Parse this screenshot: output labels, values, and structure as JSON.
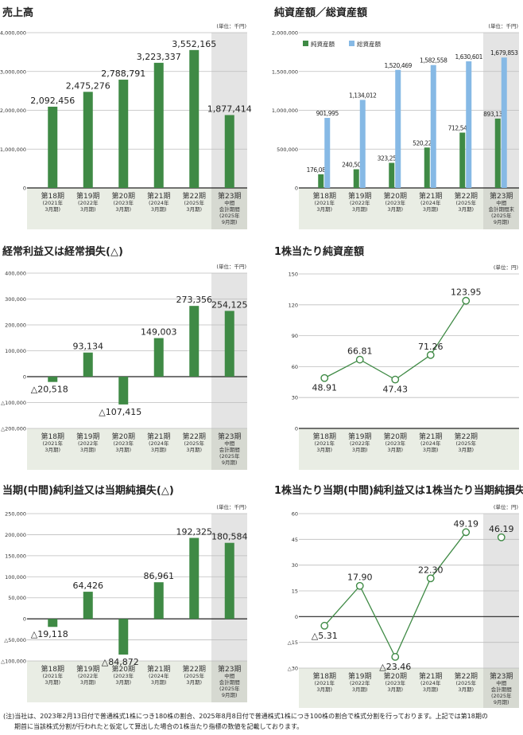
{
  "colors": {
    "green": "#3f8a45",
    "blue": "#86b9e5",
    "grid": "#bdbdbd",
    "band": "#e9ede4",
    "interim_plot": "#e4e4e4",
    "interim_band": "#d6d9d1"
  },
  "footnote": [
    "(注)当社は、2023年2月13日付で普通株式1株につき180株の割合、2025年8月8日付で普通株式1株につき100株の割合で株式分割を行っております。上記では第18期の",
    "期首に当該株式分割が行われたと仮定して算出した場合の1株当たり指標の数値を記載しております。"
  ],
  "chart_data": [
    {
      "type": "bar",
      "title": "売上高",
      "unit": "(単位：千円)",
      "categories": [
        [
          "第18期",
          "(2021年",
          "3月期)"
        ],
        [
          "第19期",
          "(2022年",
          "3月期)"
        ],
        [
          "第20期",
          "(2023年",
          "3月期)"
        ],
        [
          "第21期",
          "(2024年",
          "3月期)"
        ],
        [
          "第22期",
          "(2025年",
          "3月期)"
        ],
        [
          "第23期",
          "中間",
          "会計期間",
          "(2025年",
          "9月期)"
        ]
      ],
      "ylim": [
        0,
        4000000
      ],
      "ticks": [
        {
          "v": 0,
          "label": "0"
        },
        {
          "v": 1000000,
          "label": "1,000,000"
        },
        {
          "v": 2000000,
          "label": "2,000,000"
        },
        {
          "v": 3000000,
          "label": "3,000,000"
        },
        {
          "v": 4000000,
          "label": "4,000,000"
        }
      ],
      "series": [
        {
          "name": "売上高",
          "values": [
            2092456,
            2475276,
            2788791,
            3223337,
            3552165,
            1877414
          ],
          "labels": [
            "2,092,456",
            "2,475,276",
            "2,788,791",
            "3,223,337",
            "3,552,165",
            "1,877,414"
          ]
        }
      ],
      "interim_highlight": true
    },
    {
      "type": "bar",
      "title": "純資産額／総資産額",
      "unit": "(単位：千円)",
      "legend": [
        "純資産額",
        "総資産額"
      ],
      "legend_position": "top-left",
      "categories": [
        [
          "第18期",
          "(2021年",
          "3月期)"
        ],
        [
          "第19期",
          "(2022年",
          "3月期)"
        ],
        [
          "第20期",
          "(2023年",
          "3月期)"
        ],
        [
          "第21期",
          "(2024年",
          "3月期)"
        ],
        [
          "第22期",
          "(2025年",
          "3月期)"
        ],
        [
          "第23期",
          "中間",
          "会計期間末",
          "(2025年",
          "9月期)"
        ]
      ],
      "ylim": [
        0,
        2000000
      ],
      "ticks": [
        {
          "v": 0,
          "label": "0"
        },
        {
          "v": 500000,
          "label": "500,000"
        },
        {
          "v": 1000000,
          "label": "1,000,000"
        },
        {
          "v": 1500000,
          "label": "1,500,000"
        },
        {
          "v": 2000000,
          "label": "2,000,000"
        }
      ],
      "series": [
        {
          "name": "純資産額",
          "values": [
            176082,
            240509,
            323259,
            520220,
            712546,
            893130
          ],
          "labels": [
            "176,082",
            "240,509",
            "323,259",
            "520,220",
            "712,546",
            "893,130"
          ]
        },
        {
          "name": "総資産額",
          "values": [
            901995,
            1134012,
            1520469,
            1582558,
            1630601,
            1679853
          ],
          "labels": [
            "901,995",
            "1,134,012",
            "1,520,469",
            "1,582,558",
            "1,630,601",
            "1,679,853"
          ]
        }
      ],
      "interim_highlight": true
    },
    {
      "type": "bar",
      "title": "経常利益又は経常損失(△)",
      "unit": "(単位：千円)",
      "categories": [
        [
          "第18期",
          "(2021年",
          "3月期)"
        ],
        [
          "第19期",
          "(2022年",
          "3月期)"
        ],
        [
          "第20期",
          "(2023年",
          "3月期)"
        ],
        [
          "第21期",
          "(2024年",
          "3月期)"
        ],
        [
          "第22期",
          "(2025年",
          "3月期)"
        ],
        [
          "第23期",
          "中間",
          "会計期間",
          "(2025年",
          "9月期)"
        ]
      ],
      "ylim": [
        -200000,
        400000
      ],
      "ticks": [
        {
          "v": -200000,
          "label": "△200,000"
        },
        {
          "v": -100000,
          "label": "△100,000"
        },
        {
          "v": 0,
          "label": "0"
        },
        {
          "v": 100000,
          "label": "100,000"
        },
        {
          "v": 200000,
          "label": "200,000"
        },
        {
          "v": 300000,
          "label": "300,000"
        },
        {
          "v": 400000,
          "label": "400,000"
        }
      ],
      "series": [
        {
          "name": "経常利益",
          "values": [
            -20518,
            93134,
            -107415,
            149003,
            273356,
            254125
          ],
          "labels": [
            "△20,518",
            "93,134",
            "△107,415",
            "149,003",
            "273,356",
            "254,125"
          ]
        }
      ],
      "interim_highlight": true
    },
    {
      "type": "line",
      "title": "1株当たり純資産額",
      "unit": "(単位：円)",
      "categories": [
        [
          "第18期",
          "(2021年",
          "3月期)"
        ],
        [
          "第19期",
          "(2022年",
          "3月期)"
        ],
        [
          "第20期",
          "(2023年",
          "3月期)"
        ],
        [
          "第21期",
          "(2024年",
          "3月期)"
        ],
        [
          "第22期",
          "(2025年",
          "3月期)"
        ]
      ],
      "ylim": [
        0,
        150
      ],
      "ticks": [
        {
          "v": 0,
          "label": "0"
        },
        {
          "v": 30,
          "label": "30"
        },
        {
          "v": 60,
          "label": "60"
        },
        {
          "v": 90,
          "label": "90"
        },
        {
          "v": 120,
          "label": "120"
        },
        {
          "v": 150,
          "label": "150"
        }
      ],
      "series": [
        {
          "name": "1株当たり純資産額",
          "values": [
            48.91,
            66.81,
            47.43,
            71.26,
            123.95
          ],
          "labels": [
            "48.91",
            "66.81",
            "47.43",
            "71.26",
            "123.95"
          ],
          "label_pos": [
            "below",
            "above",
            "below",
            "above",
            "above"
          ],
          "connected": 5
        }
      ],
      "interim_highlight": false
    },
    {
      "type": "bar",
      "title": "当期(中間)純利益又は当期純損失(△)",
      "unit": "(単位：千円)",
      "categories": [
        [
          "第18期",
          "(2021年",
          "3月期)"
        ],
        [
          "第19期",
          "(2022年",
          "3月期)"
        ],
        [
          "第20期",
          "(2023年",
          "3月期)"
        ],
        [
          "第21期",
          "(2024年",
          "3月期)"
        ],
        [
          "第22期",
          "(2025年",
          "3月期)"
        ],
        [
          "第23期",
          "中間",
          "会計期間",
          "(2025年",
          "9月期)"
        ]
      ],
      "ylim": [
        -100000,
        250000
      ],
      "ticks": [
        {
          "v": -100000,
          "label": "△100,000"
        },
        {
          "v": -50000,
          "label": "△50,000"
        },
        {
          "v": 0,
          "label": "0"
        },
        {
          "v": 50000,
          "label": "50,000"
        },
        {
          "v": 100000,
          "label": "100,000"
        },
        {
          "v": 150000,
          "label": "150,000"
        },
        {
          "v": 200000,
          "label": "200,000"
        },
        {
          "v": 250000,
          "label": "250,000"
        }
      ],
      "series": [
        {
          "name": "当期純利益",
          "values": [
            -19118,
            64426,
            -84872,
            86961,
            192325,
            180584
          ],
          "labels": [
            "△19,118",
            "64,426",
            "△84,872",
            "86,961",
            "192,325",
            "180,584"
          ]
        }
      ],
      "interim_highlight": true
    },
    {
      "type": "line",
      "title": "1株当たり当期(中間)純利益又は1株当たり当期純損失(△)",
      "unit": "(単位：円)",
      "categories": [
        [
          "第18期",
          "(2021年",
          "3月期)"
        ],
        [
          "第19期",
          "(2022年",
          "3月期)"
        ],
        [
          "第20期",
          "(2023年",
          "3月期)"
        ],
        [
          "第21期",
          "(2024年",
          "3月期)"
        ],
        [
          "第22期",
          "(2025年",
          "3月期)"
        ],
        [
          "第23期",
          "中間",
          "会計期間",
          "(2025年",
          "9月期)"
        ]
      ],
      "ylim": [
        -30,
        60
      ],
      "ticks": [
        {
          "v": -30,
          "label": "△30"
        },
        {
          "v": -15,
          "label": "△15"
        },
        {
          "v": 0,
          "label": "0"
        },
        {
          "v": 15,
          "label": "15"
        },
        {
          "v": 30,
          "label": "30"
        },
        {
          "v": 45,
          "label": "45"
        },
        {
          "v": 60,
          "label": "60"
        }
      ],
      "series": [
        {
          "name": "1株当たり当期純利益",
          "values": [
            -5.31,
            17.9,
            -23.46,
            22.3,
            49.19,
            46.19
          ],
          "labels": [
            "△5.31",
            "17.90",
            "△23.46",
            "22.30",
            "49.19",
            "46.19"
          ],
          "label_pos": [
            "below",
            "above",
            "below",
            "above",
            "above",
            "above"
          ],
          "connected": 5
        }
      ],
      "interim_highlight": true
    }
  ]
}
